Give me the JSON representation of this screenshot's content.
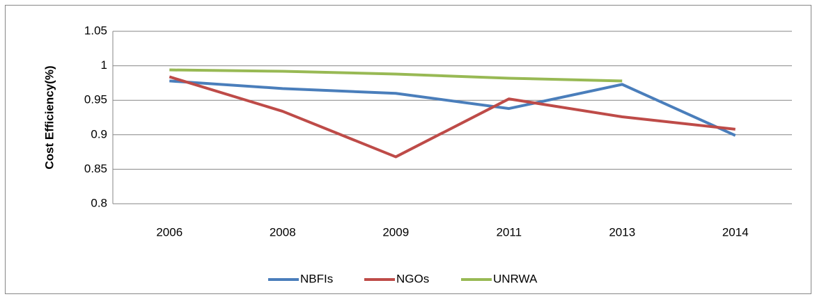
{
  "chart_data": {
    "type": "line",
    "y_label": "Cost Efficiency(%)",
    "categories": [
      "2006",
      "2008",
      "2009",
      "2011",
      "2013",
      "2014"
    ],
    "series": [
      {
        "name": "NBFIs",
        "color": "#4a7ebb",
        "values": [
          0.978,
          0.967,
          0.96,
          0.938,
          0.973,
          0.899
        ]
      },
      {
        "name": "NGOs",
        "color": "#be4b48",
        "values": [
          0.984,
          0.934,
          0.868,
          0.952,
          0.926,
          0.908
        ]
      },
      {
        "name": "UNRWA",
        "color": "#98b954",
        "values": [
          0.994,
          0.992,
          0.988,
          0.982,
          0.978,
          null
        ]
      }
    ],
    "ylim": [
      0.8,
      1.05
    ],
    "yticks": [
      0.8,
      0.85,
      0.9,
      0.95,
      1,
      1.05
    ],
    "grid": true,
    "legend": "bottom"
  }
}
